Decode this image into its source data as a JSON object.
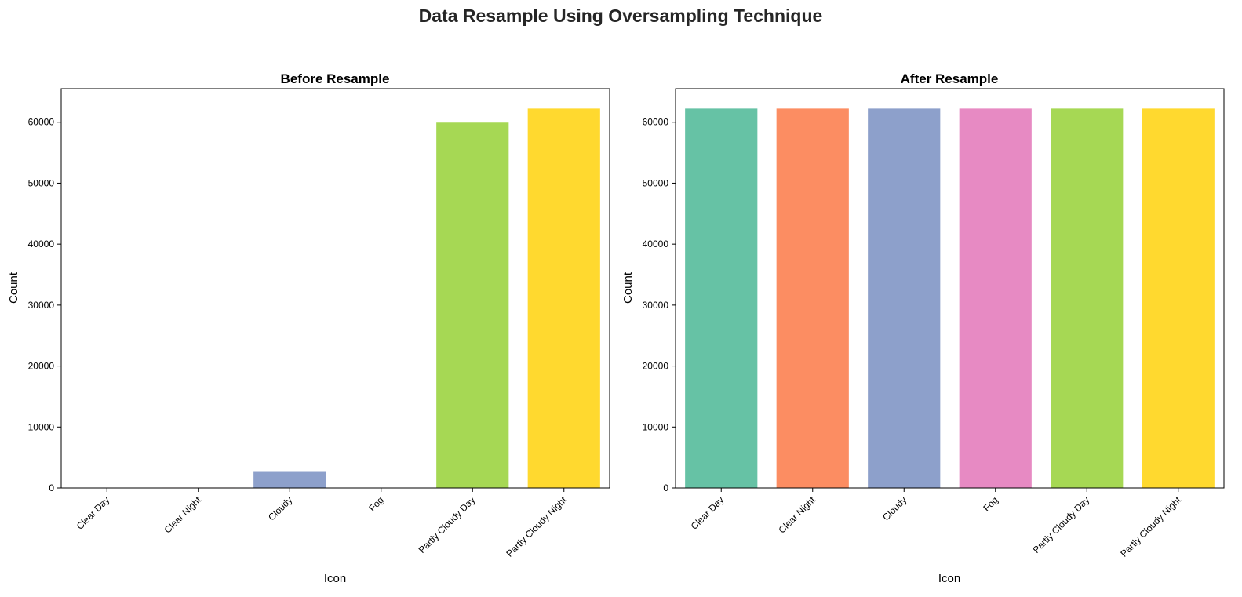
{
  "title": "Data Resample Using Oversampling Technique",
  "chart_data": [
    {
      "type": "bar",
      "title": "Before Resample",
      "xlabel": "Icon",
      "ylabel": "Count",
      "categories": [
        "Clear Day",
        "Clear Night",
        "Cloudy",
        "Fog",
        "Partly Cloudy Day",
        "Partly Cloudy Night"
      ],
      "values": [
        30,
        130,
        2700,
        50,
        60000,
        62300
      ],
      "colors": [
        "#66c2a5",
        "#fc8d62",
        "#8da0cb",
        "#e78ac3",
        "#a6d854",
        "#ffd92f"
      ],
      "ylim": [
        0,
        65500
      ],
      "yticks": [
        0,
        10000,
        20000,
        30000,
        40000,
        50000,
        60000
      ],
      "grid": false
    },
    {
      "type": "bar",
      "title": "After Resample",
      "xlabel": "Icon",
      "ylabel": "Count",
      "categories": [
        "Clear Day",
        "Clear Night",
        "Cloudy",
        "Fog",
        "Partly Cloudy Day",
        "Partly Cloudy Night"
      ],
      "values": [
        62300,
        62300,
        62300,
        62300,
        62300,
        62300
      ],
      "colors": [
        "#66c2a5",
        "#fc8d62",
        "#8da0cb",
        "#e78ac3",
        "#a6d854",
        "#ffd92f"
      ],
      "ylim": [
        0,
        65500
      ],
      "yticks": [
        0,
        10000,
        20000,
        30000,
        40000,
        50000,
        60000
      ],
      "grid": false
    }
  ]
}
